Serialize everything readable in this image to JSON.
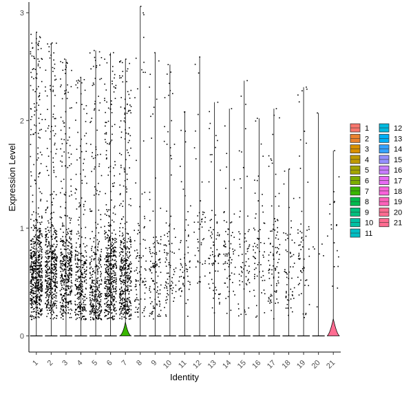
{
  "chart_data": {
    "type": "violin",
    "xlabel": "Identity",
    "ylabel": "Expression Level",
    "ylim": [
      -0.15,
      3.1
    ],
    "yticks": [
      0,
      1,
      2,
      3
    ],
    "categories": [
      "1",
      "2",
      "3",
      "4",
      "5",
      "6",
      "7",
      "8",
      "9",
      "10",
      "11",
      "12",
      "13",
      "14",
      "15",
      "16",
      "17",
      "18",
      "19",
      "20",
      "21"
    ],
    "max_values": [
      2.82,
      2.72,
      2.57,
      2.4,
      2.65,
      2.63,
      2.57,
      3.06,
      2.63,
      2.52,
      2.08,
      2.59,
      2.17,
      2.11,
      2.37,
      2.02,
      2.11,
      1.55,
      2.31,
      2.07,
      1.72
    ],
    "point_counts": [
      620,
      480,
      420,
      300,
      330,
      480,
      430,
      95,
      110,
      90,
      60,
      45,
      75,
      70,
      65,
      65,
      90,
      55,
      60,
      6,
      18
    ],
    "point_center": [
      0.55,
      0.6,
      0.6,
      0.45,
      0.4,
      0.55,
      0.5,
      0.55,
      0.55,
      0.6,
      0.65,
      0.9,
      0.7,
      0.75,
      0.7,
      0.7,
      0.7,
      0.65,
      0.7,
      0.8,
      0.9
    ],
    "visible_violins": [
      {
        "category": "7",
        "peak_height": 0.09,
        "width_fraction": 0.9
      },
      {
        "category": "21",
        "peak_height": 0.12,
        "width_fraction": 1.0
      }
    ],
    "legend": {
      "position": "right",
      "columns": 2,
      "items": [
        "1",
        "2",
        "3",
        "4",
        "5",
        "6",
        "7",
        "8",
        "9",
        "10",
        "11",
        "12",
        "13",
        "14",
        "15",
        "16",
        "17",
        "18",
        "19",
        "20",
        "21"
      ]
    },
    "colors": [
      "#F8766D",
      "#EA8331",
      "#D89000",
      "#C09B00",
      "#A3A500",
      "#7CAE00",
      "#39B600",
      "#00BB4E",
      "#00BF7D",
      "#00C1A3",
      "#00BFC4",
      "#00BAE0",
      "#00B0F6",
      "#35A2FF",
      "#9590FF",
      "#C77CFF",
      "#E76BF3",
      "#FA62DB",
      "#FF62BC",
      "#FF6C91",
      "#FF6C91"
    ],
    "grid": false
  }
}
